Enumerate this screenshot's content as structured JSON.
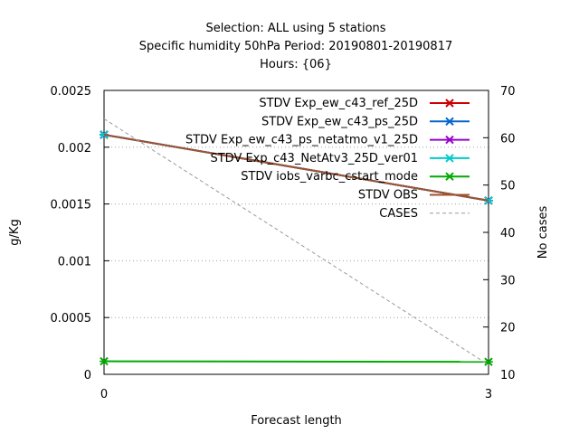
{
  "chart_data": {
    "type": "line",
    "title_lines": [
      "Selection: ALL using     5 stations",
      "Specific humidity 50hPa   Period: 20190801-20190817",
      "Hours: {06}"
    ],
    "xlabel": "Forecast length",
    "ylabel": "g/Kg",
    "y2label": "No cases",
    "x": [
      0,
      3
    ],
    "x_ticks": [
      "0",
      "3"
    ],
    "xlim": [
      0,
      3
    ],
    "ylim": [
      0,
      0.0025
    ],
    "y_ticks": [
      "0",
      "0.0005",
      "0.001",
      "0.0015",
      "0.002",
      "0.0025"
    ],
    "y2lim": [
      10,
      70
    ],
    "y2_ticks": [
      "10",
      "20",
      "30",
      "40",
      "50",
      "60",
      "70"
    ],
    "grid": true,
    "legend_position": "top-right",
    "series": [
      {
        "name": "STDV Exp_ew_c43_ref_25D",
        "color": "#cc0000",
        "axis": "y",
        "marker": "x",
        "values": [
          0.00211,
          0.00153
        ]
      },
      {
        "name": "STDV Exp_ew_c43_ps_25D",
        "color": "#0066cc",
        "axis": "y",
        "marker": "x",
        "values": [
          0.00211,
          0.00153
        ]
      },
      {
        "name": "STDV Exp_ew_c43_ps_netatmo_v1_25D",
        "color": "#9900cc",
        "axis": "y",
        "marker": "x",
        "values": [
          0.00211,
          0.00153
        ]
      },
      {
        "name": "STDV Exp_c43_NetAtv3_25D_ver01",
        "color": "#00cccc",
        "axis": "y",
        "marker": "x",
        "values": [
          0.00211,
          0.00153
        ]
      },
      {
        "name": "STDV iobs_varbc_cstart_mode",
        "color": "#00aa00",
        "axis": "y",
        "marker": "x",
        "values": [
          0.000115,
          0.00011
        ]
      },
      {
        "name": "STDV OBS",
        "color": "#a0522d",
        "axis": "y",
        "marker": "none",
        "values": [
          0.00211,
          0.00153
        ]
      },
      {
        "name": "CASES",
        "color": "#999999",
        "axis": "y2",
        "marker": "none",
        "dashed": true,
        "values": [
          64,
          12
        ]
      }
    ]
  }
}
